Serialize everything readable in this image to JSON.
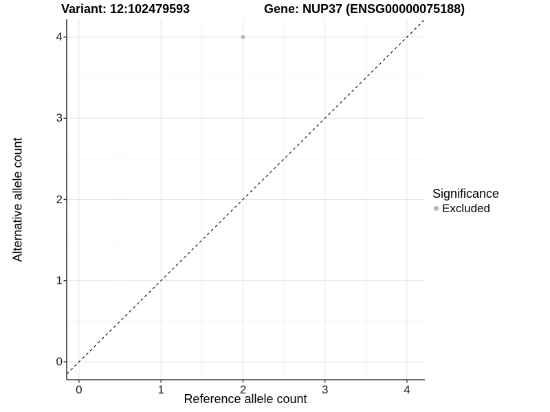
{
  "titles": {
    "variant": "Variant: 12:102479593",
    "gene": "Gene: NUP37 (ENSG00000075188)"
  },
  "axes": {
    "x_label": "Reference allele count",
    "y_label": "Alternative allele count"
  },
  "legend": {
    "title": "Significance",
    "items": [
      {
        "label": "Excluded",
        "color": "#b5b5b5"
      }
    ]
  },
  "colors": {
    "background": "#ffffff",
    "grid_major": "#e5e5e5",
    "grid_minor": "#f2f2f2",
    "axis_line": "#3c3c3c",
    "tick_mark": "#3c3c3c",
    "identity_line": "#000000",
    "point": "#b5b5b5"
  },
  "chart_data": {
    "type": "scatter",
    "title": "Variant: 12:102479593    Gene: NUP37 (ENSG00000075188)",
    "xlabel": "Reference allele count",
    "ylabel": "Alternative allele count",
    "xlim": [
      -0.15,
      4.21
    ],
    "ylim": [
      -0.22,
      4.22
    ],
    "x_ticks": [
      0,
      1,
      2,
      3,
      4
    ],
    "y_ticks": [
      0,
      1,
      2,
      3,
      4
    ],
    "x_minor_ticks": [
      0.5,
      1.5,
      2.5,
      3.5
    ],
    "y_minor_ticks": [
      0.5,
      1.5,
      2.5,
      3.5
    ],
    "grid": true,
    "legend_position": "right",
    "series": [
      {
        "name": "Excluded",
        "color": "#b5b5b5",
        "points": [
          {
            "x": 2,
            "y": 4
          }
        ]
      }
    ],
    "reference_line": {
      "type": "identity",
      "slope": 1,
      "intercept": 0,
      "style": "dashed",
      "color": "#000000"
    }
  }
}
